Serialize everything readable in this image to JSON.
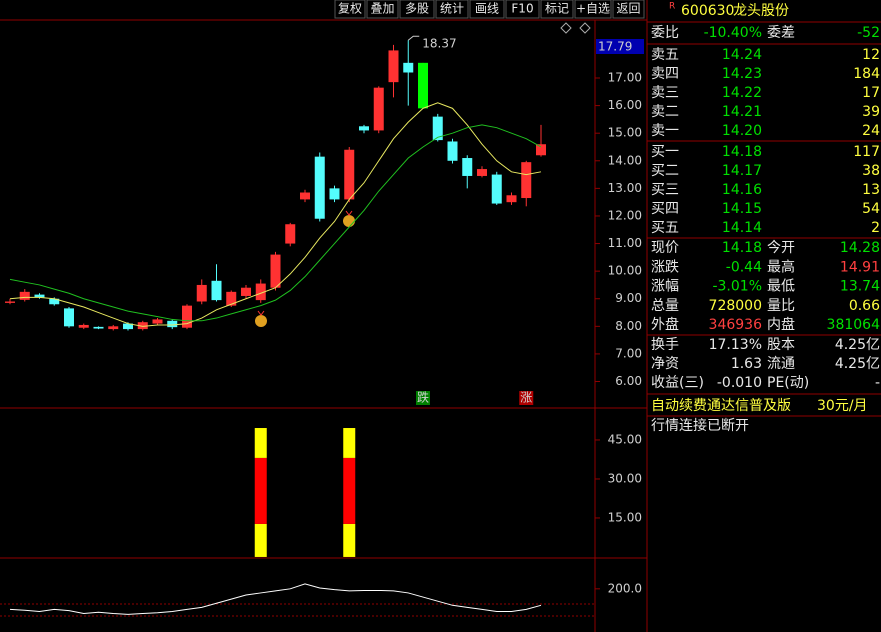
{
  "toolbar": [
    "复权",
    "叠加",
    "多股",
    "统计",
    "画线",
    "F10",
    "标记",
    "+自选",
    "返回"
  ],
  "quote": {
    "badge": "R",
    "code": "600630",
    "name": "龙头股份",
    "ratio": [
      "委比",
      "-10.40%",
      "委差",
      "-52"
    ],
    "asks": [
      [
        "卖五",
        "14.24",
        "12"
      ],
      [
        "卖四",
        "14.23",
        "184"
      ],
      [
        "卖三",
        "14.22",
        "17"
      ],
      [
        "卖二",
        "14.21",
        "39"
      ],
      [
        "卖一",
        "14.20",
        "24"
      ]
    ],
    "bids": [
      [
        "买一",
        "14.18",
        "117"
      ],
      [
        "买二",
        "14.17",
        "38"
      ],
      [
        "买三",
        "14.16",
        "13"
      ],
      [
        "买四",
        "14.15",
        "54"
      ],
      [
        "买五",
        "14.14",
        "2"
      ]
    ],
    "stats": [
      [
        "现价",
        "14.18",
        "今开",
        "14.28"
      ],
      [
        "涨跌",
        "-0.44",
        "最高",
        "14.91"
      ],
      [
        "涨幅",
        "-3.01%",
        "最低",
        "13.74"
      ],
      [
        "总量",
        "728000",
        "量比",
        "0.66"
      ],
      [
        "外盘",
        "346936",
        "内盘",
        "381064"
      ]
    ],
    "extra": [
      [
        "换手",
        "17.13%",
        "股本",
        "4.25亿"
      ],
      [
        "净资",
        "1.63",
        "流通",
        "4.25亿"
      ],
      [
        "收益(三)",
        "-0.010",
        "PE(动)",
        "-"
      ]
    ],
    "ad": "自动续费通达信普及版",
    "price": "30元/月",
    "status": "行情连接已断开"
  },
  "chart_data": [
    {
      "type": "candlestick",
      "high_label": "18.37",
      "cursor_label": "17.79",
      "open": [
        8.85,
        8.96,
        9.15,
        9.0,
        8.65,
        7.95,
        7.98,
        7.9,
        8.1,
        7.9,
        8.1,
        8.2,
        7.95,
        8.9,
        9.65,
        8.75,
        9.1,
        8.95,
        9.4,
        11.0,
        12.6,
        14.15,
        13.0,
        12.6,
        15.25,
        15.1,
        16.85,
        17.55,
        17.55,
        15.6,
        14.7,
        14.1,
        13.45,
        13.5,
        12.5,
        12.65,
        14.2
      ],
      "close": [
        8.9,
        9.25,
        9.05,
        8.8,
        8.0,
        8.05,
        7.92,
        8.0,
        7.9,
        8.15,
        8.25,
        7.97,
        8.75,
        9.5,
        8.95,
        9.25,
        9.4,
        9.55,
        10.6,
        11.7,
        12.85,
        11.9,
        12.6,
        14.4,
        15.1,
        16.65,
        18.0,
        17.2,
        15.9,
        14.75,
        14.0,
        13.45,
        13.7,
        12.45,
        12.75,
        13.95,
        14.6
      ],
      "high": [
        9.0,
        9.35,
        9.2,
        9.05,
        8.7,
        8.1,
        8.0,
        8.05,
        8.15,
        8.2,
        8.3,
        8.25,
        8.8,
        9.7,
        10.25,
        9.3,
        9.5,
        9.7,
        10.7,
        11.75,
        12.95,
        14.3,
        13.1,
        14.5,
        15.3,
        16.7,
        18.2,
        18.37,
        17.55,
        15.7,
        14.8,
        14.2,
        13.8,
        13.6,
        12.85,
        14.0,
        15.3
      ],
      "low": [
        8.8,
        8.9,
        9.0,
        8.75,
        7.95,
        7.9,
        7.9,
        7.85,
        7.85,
        7.85,
        8.05,
        7.9,
        7.9,
        8.8,
        8.9,
        8.7,
        9.0,
        8.85,
        9.3,
        10.9,
        12.5,
        11.8,
        12.5,
        12.5,
        15.0,
        15.0,
        16.3,
        16.0,
        15.9,
        14.7,
        13.9,
        13.0,
        13.4,
        12.4,
        12.4,
        12.35,
        14.15
      ],
      "colors": [
        "#ff3232",
        "#ff3232",
        "#54fcfc",
        "#54fcfc",
        "#54fcfc",
        "#ff3232",
        "#54fcfc",
        "#ff3232",
        "#54fcfc",
        "#ff3232",
        "#ff3232",
        "#54fcfc",
        "#ff3232",
        "#ff3232",
        "#54fcfc",
        "#ff3232",
        "#ff3232",
        "#ff3232",
        "#ff3232",
        "#ff3232",
        "#ff3232",
        "#54fcfc",
        "#54fcfc",
        "#ff3232",
        "#54fcfc",
        "#ff3232",
        "#ff3232",
        "#54fcfc",
        "#00ff00",
        "#54fcfc",
        "#54fcfc",
        "#54fcfc",
        "#ff3232",
        "#54fcfc",
        "#ff3232",
        "#ff3232",
        "#ff3232"
      ],
      "lines": [
        {
          "color": "#e8e860",
          "values": [
            9.0,
            9.05,
            9.05,
            9.0,
            8.85,
            8.7,
            8.5,
            8.3,
            8.1,
            8.0,
            8.05,
            8.05,
            8.1,
            8.3,
            8.6,
            8.8,
            9.0,
            9.2,
            9.4,
            9.9,
            10.5,
            11.2,
            11.8,
            12.6,
            13.2,
            14.0,
            14.8,
            15.4,
            15.9,
            16.1,
            15.9,
            15.3,
            14.6,
            14.0,
            13.6,
            13.5,
            13.6
          ]
        },
        {
          "color": "#20c020",
          "values": [
            9.7,
            9.6,
            9.5,
            9.35,
            9.2,
            9.0,
            8.85,
            8.7,
            8.55,
            8.45,
            8.35,
            8.25,
            8.2,
            8.2,
            8.3,
            8.45,
            8.6,
            8.75,
            8.95,
            9.3,
            9.8,
            10.4,
            11.0,
            11.6,
            12.2,
            12.9,
            13.5,
            14.1,
            14.5,
            14.85,
            15.0,
            15.2,
            15.3,
            15.2,
            15.0,
            14.8,
            14.5
          ]
        }
      ],
      "signals": {
        "x": [
          28,
          35
        ],
        "labels": [
          "跌",
          "涨"
        ],
        "colors": [
          "#008000",
          "#b00000"
        ]
      },
      "ylim": [
        5.04,
        19.03
      ],
      "yticks": [
        {
          "value": 17,
          "label": "17.00"
        },
        {
          "value": 16,
          "label": "16.00"
        },
        {
          "value": 15,
          "label": "15.00"
        },
        {
          "value": 14,
          "label": "14.00"
        },
        {
          "value": 13,
          "label": "13.00"
        },
        {
          "value": 12,
          "label": "12.00"
        },
        {
          "value": 11,
          "label": "11.00"
        },
        {
          "value": 10,
          "label": "10.00"
        },
        {
          "value": 9,
          "label": "9.00"
        },
        {
          "value": 8,
          "label": "8.00"
        },
        {
          "value": 7,
          "label": "7.00"
        },
        {
          "value": 6,
          "label": "6.00"
        }
      ]
    },
    {
      "type": "stacked-bar",
      "x": [
        17,
        23
      ],
      "series": [
        {
          "color": "#ffff00",
          "values": [
            12.7,
            12.7
          ]
        },
        {
          "color": "#ff0000",
          "values": [
            25.4,
            25.4
          ]
        },
        {
          "color": "#ffff00",
          "values": [
            11.5,
            11.5
          ]
        }
      ],
      "ylim": [
        -0.4,
        57.3
      ],
      "yticks": [
        {
          "value": 45,
          "label": "45.00"
        },
        {
          "value": 30,
          "label": "30.00"
        },
        {
          "value": 15,
          "label": "15.00"
        }
      ]
    },
    {
      "type": "line",
      "color": "#ffffff",
      "values": [
        150,
        148,
        145,
        150,
        147,
        140,
        143,
        140,
        138,
        140,
        142,
        145,
        150,
        155,
        165,
        175,
        185,
        190,
        195,
        200,
        212,
        202,
        198,
        195,
        196,
        196,
        195,
        190,
        180,
        170,
        160,
        155,
        150,
        145,
        145,
        150,
        160
      ],
      "ylim": [
        100,
        270
      ],
      "yticks": [
        {
          "value": 200,
          "label": "200.0"
        }
      ]
    }
  ]
}
